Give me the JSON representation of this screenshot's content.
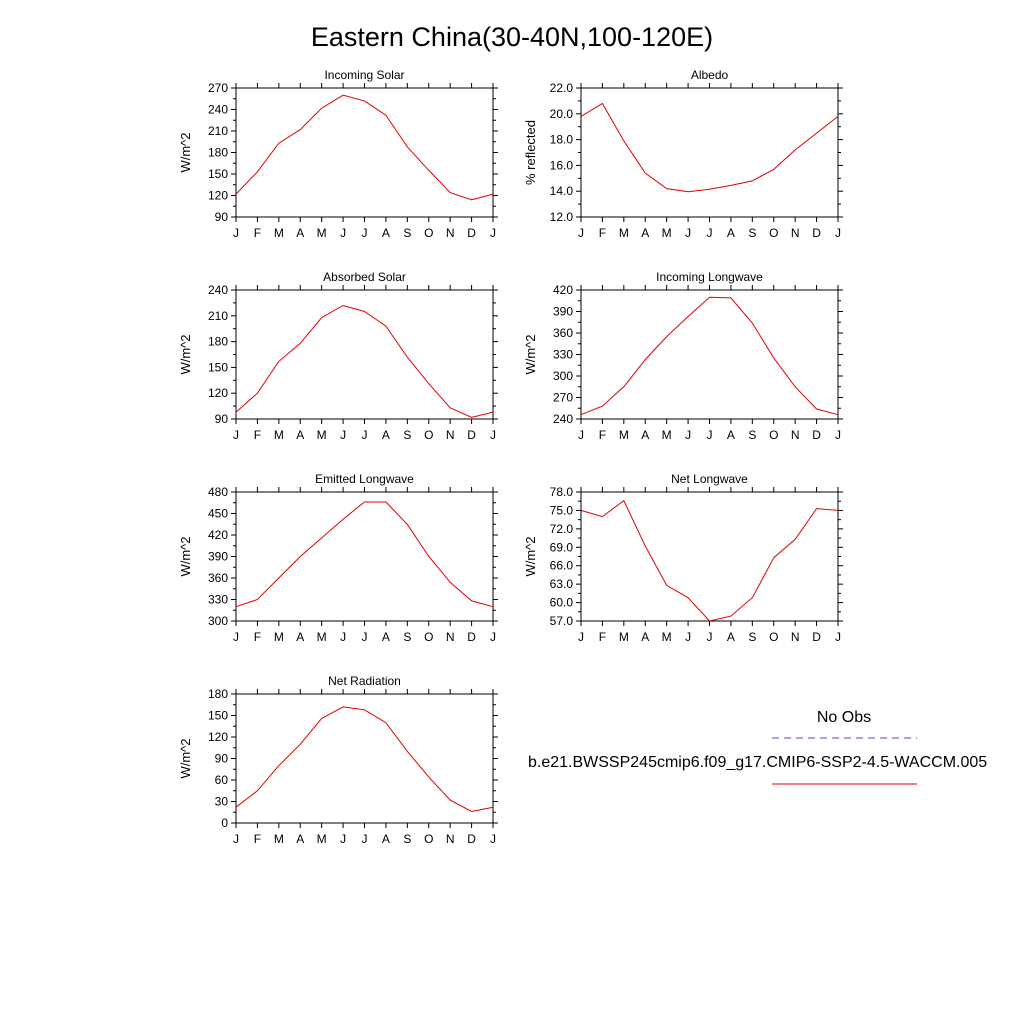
{
  "title": "Eastern China(30-40N,100-120E)",
  "months": [
    "J",
    "F",
    "M",
    "A",
    "M",
    "J",
    "J",
    "A",
    "S",
    "O",
    "N",
    "D",
    "J"
  ],
  "legend": {
    "obs_label": "No Obs",
    "obs_color": "#4a4ae6",
    "model_label": "b.e21.BWSSP245cmip6.f09_g17.CMIP6-SSP2-4.5-WACCM.005",
    "model_color": "#e00000"
  },
  "chart_data": [
    {
      "type": "line",
      "title": "Incoming Solar",
      "ylabel": "W/m^2",
      "ylim": [
        90,
        270
      ],
      "yticks": [
        "90",
        "120",
        "150",
        "180",
        "210",
        "240",
        "270"
      ],
      "x": [
        "J",
        "F",
        "M",
        "A",
        "M",
        "J",
        "J",
        "A",
        "S",
        "O",
        "N",
        "D",
        "J"
      ],
      "series": [
        {
          "values": [
            122,
            153,
            193,
            212,
            242,
            260,
            252,
            232,
            188,
            155,
            124,
            114,
            122
          ]
        }
      ]
    },
    {
      "type": "line",
      "title": "Albedo",
      "ylabel": "% reflected",
      "ylim": [
        12,
        22
      ],
      "yticks": [
        "12.0",
        "14.0",
        "16.0",
        "18.0",
        "20.0",
        "22.0"
      ],
      "x": [
        "J",
        "F",
        "M",
        "A",
        "M",
        "J",
        "J",
        "A",
        "S",
        "O",
        "N",
        "D",
        "J"
      ],
      "series": [
        {
          "values": [
            19.8,
            20.8,
            17.9,
            15.4,
            14.2,
            13.95,
            14.15,
            14.45,
            14.8,
            15.7,
            17.2,
            18.5,
            19.8
          ]
        }
      ]
    },
    {
      "type": "line",
      "title": "Absorbed Solar",
      "ylabel": "W/m^2",
      "ylim": [
        90,
        240
      ],
      "yticks": [
        "90",
        "120",
        "150",
        "180",
        "210",
        "240"
      ],
      "x": [
        "J",
        "F",
        "M",
        "A",
        "M",
        "J",
        "J",
        "A",
        "S",
        "O",
        "N",
        "D",
        "J"
      ],
      "series": [
        {
          "values": [
            98,
            120,
            157,
            178,
            208,
            222,
            215,
            198,
            162,
            131,
            103,
            92,
            98
          ]
        }
      ]
    },
    {
      "type": "line",
      "title": "Incoming Longwave",
      "ylabel": "W/m^2",
      "ylim": [
        240,
        420
      ],
      "yticks": [
        "240",
        "270",
        "300",
        "330",
        "360",
        "390",
        "420"
      ],
      "x": [
        "J",
        "F",
        "M",
        "A",
        "M",
        "J",
        "J",
        "A",
        "S",
        "O",
        "N",
        "D",
        "J"
      ],
      "series": [
        {
          "values": [
            246,
            258,
            285,
            323,
            355,
            383,
            410,
            409,
            374,
            325,
            285,
            254,
            246
          ]
        }
      ]
    },
    {
      "type": "line",
      "title": "Emitted Longwave",
      "ylabel": "W/m^2",
      "ylim": [
        300,
        480
      ],
      "yticks": [
        "300",
        "330",
        "360",
        "390",
        "420",
        "450",
        "480"
      ],
      "x": [
        "J",
        "F",
        "M",
        "A",
        "M",
        "J",
        "J",
        "A",
        "S",
        "O",
        "N",
        "D",
        "J"
      ],
      "series": [
        {
          "values": [
            320,
            330,
            360,
            390,
            416,
            442,
            466,
            466,
            435,
            390,
            354,
            328,
            320
          ]
        }
      ]
    },
    {
      "type": "line",
      "title": "Net Longwave",
      "ylabel": "W/m^2",
      "ylim": [
        57,
        78
      ],
      "yticks": [
        "57.0",
        "60.0",
        "63.0",
        "66.0",
        "69.0",
        "72.0",
        "75.0",
        "78.0"
      ],
      "x": [
        "J",
        "F",
        "M",
        "A",
        "M",
        "J",
        "J",
        "A",
        "S",
        "O",
        "N",
        "D",
        "J"
      ],
      "series": [
        {
          "values": [
            75.0,
            74.0,
            76.6,
            69.2,
            62.8,
            60.8,
            57.0,
            57.8,
            60.8,
            67.3,
            70.3,
            75.3,
            75.0
          ]
        }
      ]
    },
    {
      "type": "line",
      "title": "Net Radiation",
      "ylabel": "W/m^2",
      "ylim": [
        0,
        180
      ],
      "yticks": [
        "0",
        "30",
        "60",
        "90",
        "120",
        "150",
        "180"
      ],
      "x": [
        "J",
        "F",
        "M",
        "A",
        "M",
        "J",
        "J",
        "A",
        "S",
        "O",
        "N",
        "D",
        "J"
      ],
      "series": [
        {
          "values": [
            22,
            45,
            80,
            110,
            146,
            162,
            158,
            140,
            100,
            64,
            32,
            16,
            22
          ]
        }
      ]
    }
  ]
}
